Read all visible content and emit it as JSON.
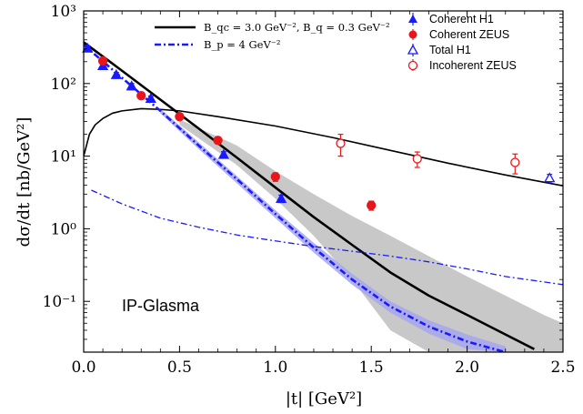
{
  "chart_data": {
    "type": "line",
    "xlabel": "|t| [GeV²]",
    "ylabel": "dσ/dt [nb/GeV²]",
    "xlim": [
      0.0,
      2.5
    ],
    "ylim": [
      0.02,
      1000
    ],
    "yscale": "log",
    "x_ticks": [
      "0.0",
      "0.5",
      "1.0",
      "1.5",
      "2.0",
      "2.5"
    ],
    "y_ticks": [
      {
        "value": 1000,
        "label": "10³"
      },
      {
        "value": 100,
        "label": "10²"
      },
      {
        "value": 10,
        "label": "10¹"
      },
      {
        "value": 1,
        "label": "10⁰"
      },
      {
        "value": 0.1,
        "label": "10⁻¹"
      }
    ],
    "annotation": "IP-Glasma",
    "legend_placement": "top",
    "legend_left": [
      {
        "label": "B_qc = 3.0 GeV⁻², B_q = 0.3 GeV⁻²",
        "style": "solid",
        "color": "#000000"
      },
      {
        "label": "B_p = 4 GeV⁻²",
        "style": "dashdot",
        "color": "#1a1aff"
      }
    ],
    "legend_right": [
      {
        "label": "Coherent H1",
        "marker": "filled-triangle",
        "color": "#1a1aff"
      },
      {
        "label": "Coherent ZEUS",
        "marker": "filled-circle",
        "color": "#e8161b"
      },
      {
        "label": "Total H1",
        "marker": "open-triangle",
        "color": "#1a1aff"
      },
      {
        "label": "Incoherent ZEUS",
        "marker": "open-circle",
        "color": "#e8161b"
      }
    ],
    "series": [
      {
        "name": "B_qc = 3.0 GeV⁻², B_q = 0.3 GeV⁻² (coherent)",
        "style": "solid",
        "color": "#000000",
        "width": 2.6,
        "x": [
          0.0,
          0.2,
          0.4,
          0.6,
          0.8,
          1.0,
          1.2,
          1.4,
          1.6,
          1.8,
          2.0,
          2.2,
          2.35
        ],
        "y": [
          370,
          150,
          60,
          24,
          9.5,
          3.7,
          1.45,
          0.6,
          0.25,
          0.12,
          0.065,
          0.035,
          0.022
        ]
      },
      {
        "name": "B_qc = 3.0 GeV⁻², B_q = 0.3 GeV⁻² (incoherent)",
        "style": "solid",
        "color": "#000000",
        "width": 1.6,
        "x": [
          0.0,
          0.03,
          0.06,
          0.1,
          0.15,
          0.2,
          0.3,
          0.4,
          0.5,
          0.7,
          1.0,
          1.3,
          1.6,
          1.9,
          2.2,
          2.5
        ],
        "y": [
          10,
          20,
          27,
          33,
          39,
          42,
          45,
          44,
          42,
          35,
          26,
          18,
          12,
          8,
          5.5,
          3.9
        ]
      },
      {
        "name": "B_p = 4 GeV⁻² (coherent)",
        "style": "dashdot",
        "color": "#1a1aff",
        "width": 2.6,
        "x": [
          0.0,
          0.2,
          0.4,
          0.6,
          0.8,
          1.0,
          1.2,
          1.4,
          1.6,
          1.8,
          2.0,
          2.2
        ],
        "y": [
          340,
          120,
          42,
          14,
          4.8,
          1.6,
          0.55,
          0.2,
          0.085,
          0.045,
          0.028,
          0.02
        ]
      },
      {
        "name": "B_p = 4 GeV⁻² (incoherent)",
        "style": "dashdot",
        "color": "#1a1aff",
        "width": 1.3,
        "x": [
          0.04,
          0.2,
          0.4,
          0.6,
          0.8,
          1.0,
          1.2,
          1.4,
          1.6,
          1.8,
          2.0,
          2.2,
          2.5
        ],
        "y": [
          3.4,
          2.2,
          1.4,
          1.05,
          0.82,
          0.68,
          0.57,
          0.49,
          0.42,
          0.35,
          0.28,
          0.22,
          0.17
        ]
      }
    ],
    "bands": [
      {
        "name": "uncertainty band (B_qc = 3.0 GeV⁻², B_q = 0.3 GeV⁻²)",
        "color": "#c8c8c8",
        "x": [
          0.5,
          0.8,
          1.0,
          1.2,
          1.4,
          1.6,
          1.8,
          2.0,
          2.2,
          2.4,
          2.5
        ],
        "upper": [
          32,
          14,
          6.2,
          3.0,
          1.5,
          0.8,
          0.42,
          0.22,
          0.12,
          0.065,
          0.05
        ],
        "lower": [
          27,
          7.5,
          2.6,
          0.8,
          0.2,
          0.04,
          0.02,
          0.02,
          0.02,
          0.02,
          0.02
        ]
      },
      {
        "name": "uncertainty band (B_p = 4 GeV⁻²)",
        "color": "#a6a6ee",
        "x": [
          0.4,
          0.6,
          0.8,
          1.0,
          1.2,
          1.4,
          1.6,
          1.8,
          2.0,
          2.2
        ],
        "upper": [
          45,
          15.5,
          5.3,
          1.8,
          0.64,
          0.24,
          0.1,
          0.055,
          0.035,
          0.024
        ],
        "lower": [
          39,
          12.5,
          4.2,
          1.4,
          0.47,
          0.17,
          0.07,
          0.036,
          0.022,
          0.02
        ]
      }
    ],
    "points": [
      {
        "name": "Coherent H1",
        "marker": "filled-triangle",
        "color": "#1a1aff",
        "x": [
          0.02,
          0.1,
          0.17,
          0.25,
          0.35,
          0.73,
          1.03
        ],
        "y": [
          305,
          175,
          132,
          92,
          62,
          10.5,
          2.6
        ],
        "err": [
          25,
          15,
          10,
          8,
          5,
          1,
          0.3
        ]
      },
      {
        "name": "Coherent ZEUS",
        "marker": "filled-circle",
        "color": "#e8161b",
        "x": [
          0.1,
          0.3,
          0.5,
          0.7,
          1.0,
          1.5
        ],
        "y": [
          205,
          68,
          35,
          16.5,
          5.2,
          2.1
        ],
        "err": [
          15,
          5,
          3,
          1.8,
          0.7,
          0.3
        ]
      },
      {
        "name": "Total H1",
        "marker": "open-triangle",
        "color": "#1a1aff",
        "x": [
          2.43
        ],
        "y": [
          5.0
        ],
        "err": [
          0.6
        ]
      },
      {
        "name": "Incoherent ZEUS",
        "marker": "open-circle",
        "color": "#e8161b",
        "x": [
          1.34,
          1.74,
          2.25
        ],
        "y": [
          15,
          9.2,
          8.2
        ],
        "err": [
          5,
          2.2,
          2.5
        ]
      }
    ]
  }
}
